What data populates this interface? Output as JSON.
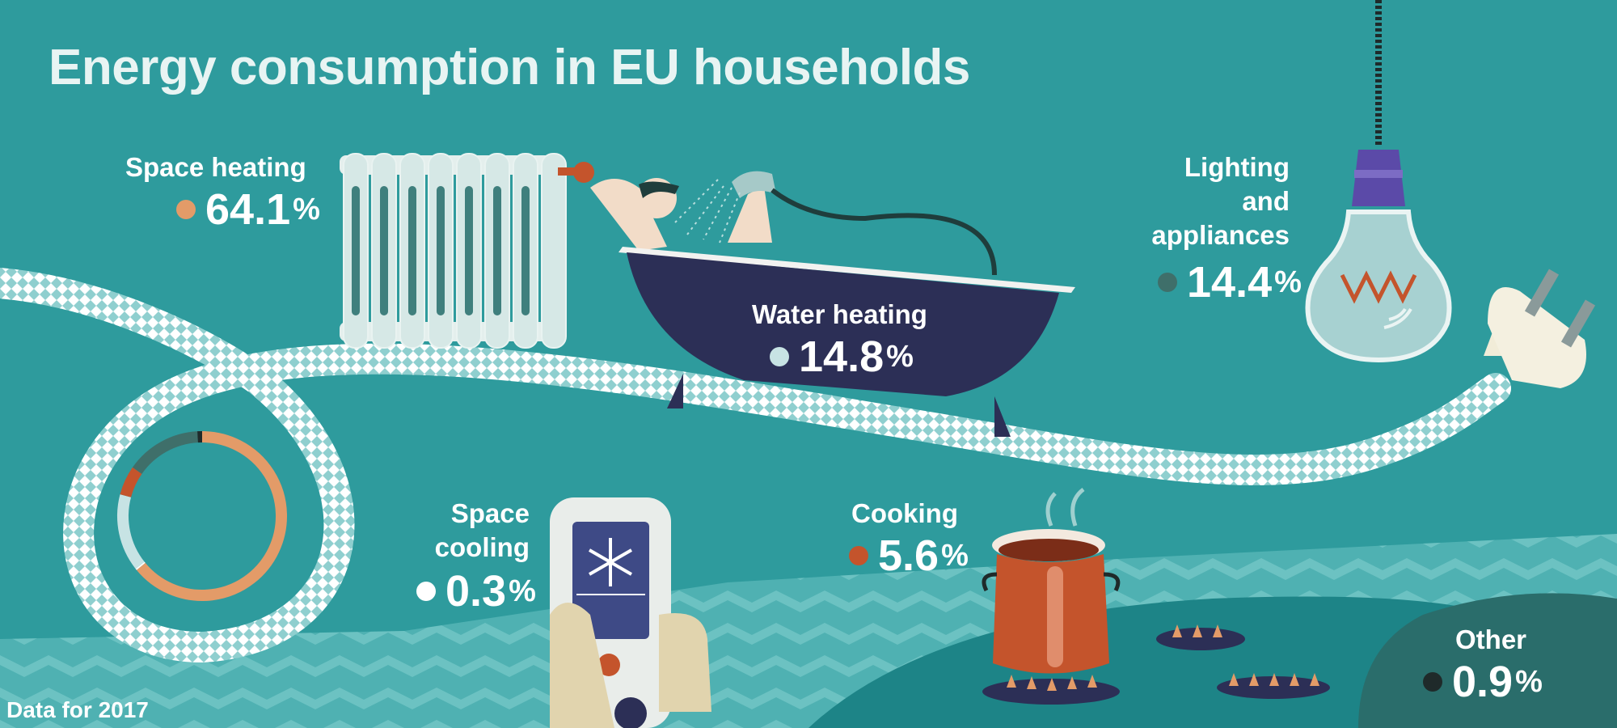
{
  "title": "Energy consumption in EU households",
  "footer": "Data for 2017",
  "chart_data": {
    "type": "pie",
    "categories": [
      "Space heating",
      "Water heating",
      "Lighting and appliances",
      "Cooking",
      "Other",
      "Space cooling"
    ],
    "values": [
      64.1,
      14.8,
      14.4,
      5.6,
      0.9,
      0.3
    ],
    "unit": "%",
    "colors": [
      "#e39b68",
      "#c7e3e4",
      "#3f6f6a",
      "#c4542c",
      "#1f2a2a",
      "#ffffff"
    ]
  },
  "labels": {
    "space_heating": {
      "name": "Space heating",
      "value": "64.1",
      "pct": "%"
    },
    "water_heating": {
      "name": "Water heating",
      "value": "14.8",
      "pct": "%"
    },
    "lighting": {
      "line1": "Lighting",
      "line2": "and",
      "line3": "appliances",
      "value": "14.4",
      "pct": "%"
    },
    "space_cooling": {
      "line1": "Space",
      "line2": "cooling",
      "value": "0.3",
      "pct": "%"
    },
    "cooking": {
      "name": "Cooking",
      "value": "5.6",
      "pct": "%"
    },
    "other": {
      "name": "Other",
      "value": "0.9",
      "pct": "%"
    }
  }
}
